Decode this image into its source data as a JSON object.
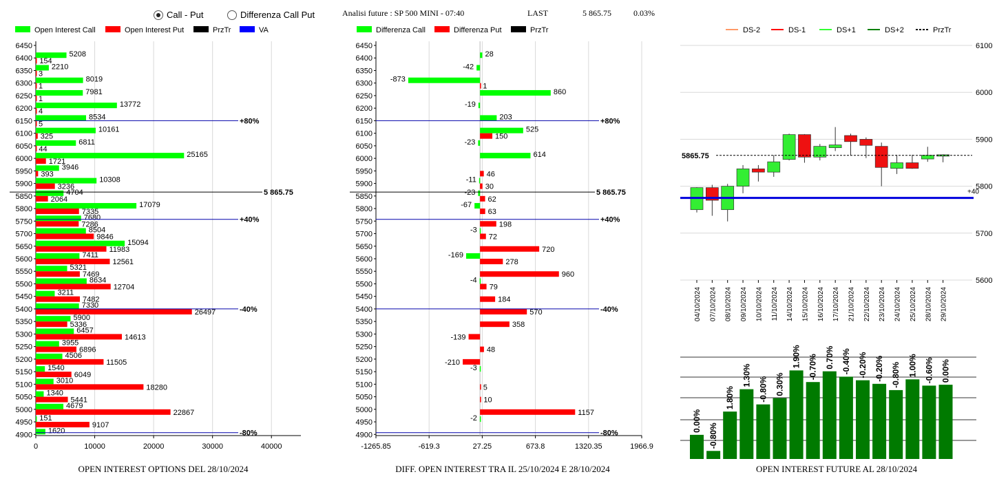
{
  "header": {
    "radio_call_put": "Call - Put",
    "radio_diff": "Differenza Call Put",
    "future_label": "Analisi future : SP 500 MINI - 07:40",
    "last_label": "LAST",
    "last_value": "5 865.75",
    "last_change": "0.03%"
  },
  "legend1": [
    {
      "label": "Open Interest Call",
      "color": "#00ff00",
      "kind": "box"
    },
    {
      "label": "Open Interest Put",
      "color": "#ff0000",
      "kind": "box"
    },
    {
      "label": "PrzTr",
      "color": "#000000",
      "kind": "box"
    },
    {
      "label": "VA",
      "color": "#0000ff",
      "kind": "box"
    }
  ],
  "legend2": [
    {
      "label": "Differenza Call",
      "color": "#00ff00",
      "kind": "box"
    },
    {
      "label": "Differenza Put",
      "color": "#ff0000",
      "kind": "box"
    },
    {
      "label": "PrzTr",
      "color": "#000000",
      "kind": "box"
    }
  ],
  "legend3": [
    {
      "label": "DS-2",
      "color": "#ff9966",
      "kind": "line"
    },
    {
      "label": "DS-1",
      "color": "#ff0000",
      "kind": "line"
    },
    {
      "label": "DS+1",
      "color": "#33ff33",
      "kind": "line"
    },
    {
      "label": "DS+2",
      "color": "#008000",
      "kind": "line"
    },
    {
      "label": "PrzTr",
      "color": "#000000",
      "kind": "dash"
    }
  ],
  "captions": {
    "c1": "OPEN INTEREST OPTIONS DEL 28/10/2024",
    "c2": "DIFF. OPEN INTEREST TRA IL 25/10/2024 E 28/10/2024",
    "c3": "OPEN INTEREST FUTURE AL 28/10/2024"
  },
  "chart_data": [
    {
      "type": "bar",
      "orientation": "horizontal",
      "strikes": [
        6450,
        6400,
        6350,
        6300,
        6250,
        6200,
        6150,
        6100,
        6050,
        6000,
        5950,
        5900,
        5850,
        5800,
        5750,
        5700,
        5650,
        5600,
        5550,
        5500,
        5450,
        5400,
        5350,
        5300,
        5250,
        5200,
        5150,
        5100,
        5050,
        5000,
        4950,
        4900
      ],
      "series": [
        {
          "name": "Open Interest Call",
          "values": [
            null,
            5208,
            2210,
            8019,
            7981,
            13772,
            8534,
            10161,
            6811,
            25165,
            3946,
            10308,
            4704,
            17079,
            7680,
            8504,
            15094,
            7411,
            5321,
            8634,
            3211,
            7330,
            5900,
            6457,
            3955,
            4506,
            1540,
            3010,
            1340,
            4679,
            151,
            1620
          ]
        },
        {
          "name": "Open Interest Put",
          "values": [
            null,
            154,
            3,
            1,
            1,
            4,
            5,
            325,
            44,
            1721,
            393,
            3236,
            2064,
            7335,
            7286,
            9846,
            11983,
            12561,
            7469,
            12704,
            7482,
            26497,
            5336,
            14613,
            6896,
            11505,
            6049,
            18280,
            5441,
            22867,
            9107,
            null
          ]
        }
      ],
      "xlim": [
        0,
        45000
      ],
      "x_ticks": [
        "0",
        "10000",
        "20000",
        "30000",
        "40000"
      ],
      "reference_lines": [
        {
          "strike": 6150,
          "label": "+80%",
          "color": "#0000aa"
        },
        {
          "strike": 5757,
          "label": "+40%",
          "color": "#0000aa"
        },
        {
          "strike": 5400,
          "label": "-40%",
          "color": "#0000aa"
        },
        {
          "strike": 4907,
          "label": "-80%",
          "color": "#0000aa"
        },
        {
          "strike": 5865.75,
          "label": "5 865.75",
          "color": "#000000"
        }
      ]
    },
    {
      "type": "bar",
      "orientation": "horizontal",
      "strikes": [
        6450,
        6400,
        6350,
        6300,
        6250,
        6200,
        6150,
        6100,
        6050,
        6000,
        5950,
        5900,
        5850,
        5800,
        5750,
        5700,
        5650,
        5600,
        5550,
        5500,
        5450,
        5400,
        5350,
        5300,
        5250,
        5200,
        5150,
        5100,
        5050,
        5000,
        4950,
        4900
      ],
      "series": [
        {
          "name": "Differenza Call",
          "values": [
            null,
            28,
            -42,
            -873,
            860,
            -19,
            203,
            525,
            -23,
            614,
            null,
            -11,
            -23,
            -67,
            null,
            -3,
            null,
            -169,
            null,
            -4,
            null,
            null,
            null,
            null,
            null,
            null,
            -3,
            null,
            null,
            null,
            -2,
            null
          ]
        },
        {
          "name": "Differenza Put",
          "values": [
            null,
            null,
            null,
            1,
            null,
            null,
            null,
            150,
            null,
            null,
            46,
            30,
            62,
            63,
            198,
            72,
            720,
            278,
            960,
            79,
            184,
            570,
            358,
            -139,
            48,
            -210,
            null,
            5,
            10,
            1157,
            null,
            null
          ]
        }
      ],
      "xlim": [
        -1265.85,
        1966.9
      ],
      "x_ticks": [
        "-1265.85",
        "-619.3",
        "27.25",
        "673.8",
        "1320.35",
        "1966.9"
      ],
      "reference_lines": [
        {
          "strike": 6150,
          "label": "+80%",
          "color": "#0000aa"
        },
        {
          "strike": 5757,
          "label": "+40%",
          "color": "#0000aa"
        },
        {
          "strike": 5400,
          "label": "-40%",
          "color": "#0000aa"
        },
        {
          "strike": 4907,
          "label": "-80%",
          "color": "#0000aa"
        },
        {
          "strike": 5865.75,
          "label": "5 865.75",
          "color": "#000000"
        }
      ]
    },
    {
      "type": "candlestick",
      "dates": [
        "04/10/2024",
        "07/10/2024",
        "08/10/2024",
        "09/10/2024",
        "10/10/2024",
        "11/10/2024",
        "14/10/2024",
        "15/10/2024",
        "16/10/2024",
        "17/10/2024",
        "21/10/2024",
        "22/10/2024",
        "23/10/2024",
        "24/10/2024",
        "25/10/2024",
        "28/10/2024",
        "29/10/2024"
      ],
      "ohlc": [
        {
          "o": 5750,
          "h": 5798,
          "l": 5744,
          "c": 5797
        },
        {
          "o": 5797,
          "h": 5803,
          "l": 5737,
          "c": 5770
        },
        {
          "o": 5750,
          "h": 5805,
          "l": 5725,
          "c": 5800
        },
        {
          "o": 5800,
          "h": 5845,
          "l": 5785,
          "c": 5837
        },
        {
          "o": 5837,
          "h": 5845,
          "l": 5810,
          "c": 5830
        },
        {
          "o": 5830,
          "h": 5866,
          "l": 5820,
          "c": 5852
        },
        {
          "o": 5857,
          "h": 5912,
          "l": 5855,
          "c": 5910
        },
        {
          "o": 5910,
          "h": 5911,
          "l": 5850,
          "c": 5862
        },
        {
          "o": 5862,
          "h": 5890,
          "l": 5855,
          "c": 5885
        },
        {
          "o": 5882,
          "h": 5926,
          "l": 5875,
          "c": 5888
        },
        {
          "o": 5908,
          "h": 5912,
          "l": 5865,
          "c": 5895
        },
        {
          "o": 5900,
          "h": 5904,
          "l": 5860,
          "c": 5887
        },
        {
          "o": 5885,
          "h": 5893,
          "l": 5800,
          "c": 5840
        },
        {
          "o": 5838,
          "h": 5867,
          "l": 5826,
          "c": 5850
        },
        {
          "o": 5850,
          "h": 5867,
          "l": 5837,
          "c": 5838
        },
        {
          "o": 5858,
          "h": 5884,
          "l": 5852,
          "c": 5866
        },
        {
          "o": 5866,
          "h": 5868,
          "l": 5851,
          "c": 5867
        }
      ],
      "ylim": [
        5600,
        6100
      ],
      "y_ticks": [
        "5600",
        "5700",
        "5800",
        "5900",
        "6000",
        "6100"
      ],
      "przTr": 5865.75,
      "przTr_label": "5865.75",
      "va_level": 5775,
      "va_label": "+40"
    },
    {
      "type": "bar",
      "categories": [
        "04/10/2024",
        "07/10/2024",
        "08/10/2024",
        "09/10/2024",
        "10/10/2024",
        "11/10/2024",
        "14/10/2024",
        "15/10/2024",
        "16/10/2024",
        "17/10/2024",
        "21/10/2024",
        "22/10/2024",
        "23/10/2024",
        "24/10/2024",
        "25/10/2024",
        "28/10/2024"
      ],
      "relative_height": [
        0.27,
        0.09,
        0.53,
        0.78,
        0.61,
        0.68,
        0.99,
        0.86,
        0.98,
        0.92,
        0.88,
        0.84,
        0.77,
        0.89,
        0.82,
        0.83
      ],
      "labels": [
        "0.00%",
        "-0.80%",
        "1.80%",
        "1.30%",
        "-0.80%",
        "0.30%",
        "1.90%",
        "-0.70%",
        "0.70%",
        "-0.40%",
        "-0.20%",
        "-0.20%",
        "-0.80%",
        "1.00%",
        "-0.60%",
        "0.00%"
      ],
      "color": "#007a00"
    }
  ]
}
